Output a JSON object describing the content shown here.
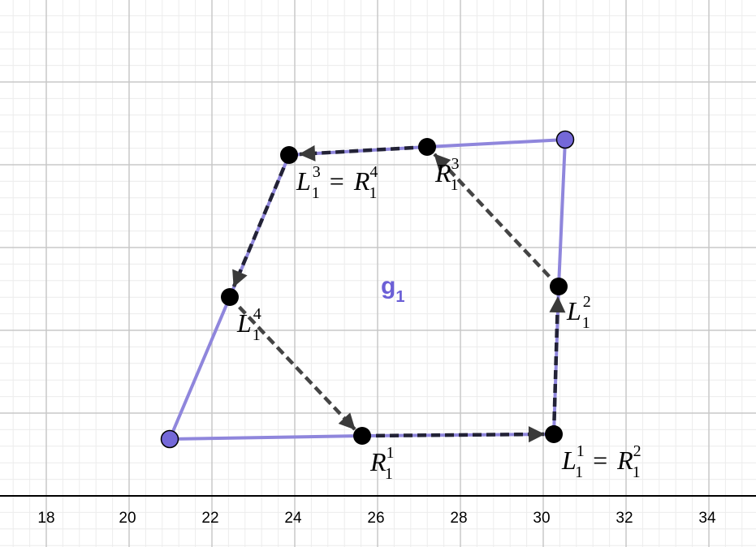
{
  "axis": {
    "x_ticks": [
      "18",
      "20",
      "22",
      "24",
      "26",
      "28",
      "30",
      "32",
      "34"
    ]
  },
  "polygon": {
    "label": "g",
    "label_sub": "1",
    "color": "#8f86dc",
    "vertex_fill": "#7468d8"
  },
  "arrow_color_dashed": "#444444",
  "arrow_color_solid": "#222236",
  "points": {
    "R1": {
      "base": "R",
      "sub": "1",
      "sup": "1"
    },
    "L1": {
      "base": "L",
      "sub": "1",
      "sup": "1",
      "eq": "=",
      "base2": "R",
      "sub2": "1",
      "sup2": "2"
    },
    "L2": {
      "base": "L",
      "sub": "1",
      "sup": "2"
    },
    "R3": {
      "base": "R",
      "sub": "1",
      "sup": "3"
    },
    "L3": {
      "base": "L",
      "sub": "1",
      "sup": "3",
      "eq": "=",
      "base2": "R",
      "sub2": "1",
      "sup2": "4"
    },
    "L4": {
      "base": "L",
      "sub": "1",
      "sup": "4"
    }
  }
}
